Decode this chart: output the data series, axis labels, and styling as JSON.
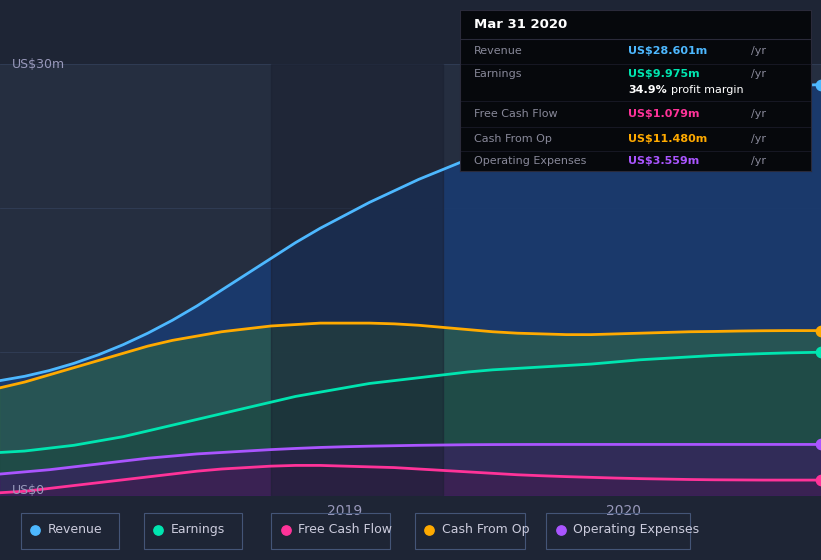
{
  "bg_color": "#1e2535",
  "plot_bg": "#252e40",
  "title": "Mar 31 2020",
  "ylabel_top": "US$30m",
  "ylabel_bottom": "US$0",
  "colors": {
    "revenue": "#4db8ff",
    "earnings": "#00e5b0",
    "free_cash_flow": "#ff3399",
    "cash_from_op": "#ffaa00",
    "operating_expenses": "#aa55ff"
  },
  "legend": [
    {
      "label": "Revenue",
      "color": "#4db8ff"
    },
    {
      "label": "Earnings",
      "color": "#00e5b0"
    },
    {
      "label": "Free Cash Flow",
      "color": "#ff3399"
    },
    {
      "label": "Cash From Op",
      "color": "#ffaa00"
    },
    {
      "label": "Operating Expenses",
      "color": "#aa55ff"
    }
  ],
  "x": [
    0,
    3,
    6,
    9,
    12,
    15,
    18,
    21,
    24,
    27,
    30,
    33,
    36,
    39,
    42,
    45,
    48,
    51,
    54,
    57,
    60,
    63,
    66,
    69,
    72,
    75,
    78,
    81,
    84,
    87,
    90,
    93,
    96,
    100
  ],
  "revenue": [
    8.0,
    8.3,
    8.7,
    9.2,
    9.8,
    10.5,
    11.3,
    12.2,
    13.2,
    14.3,
    15.4,
    16.5,
    17.6,
    18.6,
    19.5,
    20.4,
    21.2,
    22.0,
    22.7,
    23.4,
    24.0,
    24.6,
    25.2,
    25.7,
    26.2,
    26.6,
    27.0,
    27.3,
    27.6,
    27.9,
    28.1,
    28.3,
    28.5,
    28.601
  ],
  "cash_from_op": [
    7.5,
    7.9,
    8.4,
    8.9,
    9.4,
    9.9,
    10.4,
    10.8,
    11.1,
    11.4,
    11.6,
    11.8,
    11.9,
    12.0,
    12.0,
    12.0,
    11.95,
    11.85,
    11.7,
    11.55,
    11.4,
    11.3,
    11.25,
    11.2,
    11.2,
    11.25,
    11.3,
    11.35,
    11.4,
    11.42,
    11.45,
    11.47,
    11.48,
    11.48
  ],
  "earnings": [
    3.0,
    3.1,
    3.3,
    3.5,
    3.8,
    4.1,
    4.5,
    4.9,
    5.3,
    5.7,
    6.1,
    6.5,
    6.9,
    7.2,
    7.5,
    7.8,
    8.0,
    8.2,
    8.4,
    8.6,
    8.75,
    8.85,
    8.95,
    9.05,
    9.15,
    9.3,
    9.45,
    9.55,
    9.65,
    9.75,
    9.82,
    9.88,
    9.93,
    9.975
  ],
  "free_cash_flow": [
    0.2,
    0.3,
    0.5,
    0.7,
    0.9,
    1.1,
    1.3,
    1.5,
    1.7,
    1.85,
    1.95,
    2.05,
    2.1,
    2.1,
    2.05,
    2.0,
    1.95,
    1.85,
    1.75,
    1.65,
    1.55,
    1.45,
    1.38,
    1.32,
    1.27,
    1.22,
    1.18,
    1.15,
    1.12,
    1.1,
    1.09,
    1.08,
    1.079,
    1.079
  ],
  "operating_expenses": [
    1.5,
    1.65,
    1.8,
    2.0,
    2.2,
    2.4,
    2.6,
    2.75,
    2.9,
    3.0,
    3.1,
    3.2,
    3.28,
    3.35,
    3.4,
    3.44,
    3.47,
    3.5,
    3.52,
    3.54,
    3.55,
    3.555,
    3.558,
    3.559,
    3.559,
    3.559,
    3.559,
    3.559,
    3.559,
    3.559,
    3.559,
    3.559,
    3.559,
    3.559
  ],
  "shade_x_start": 33,
  "shade_x_end": 54,
  "ylim": [
    0,
    30
  ],
  "x_range": [
    0,
    100
  ],
  "tick_2019": 42,
  "tick_2020": 76
}
